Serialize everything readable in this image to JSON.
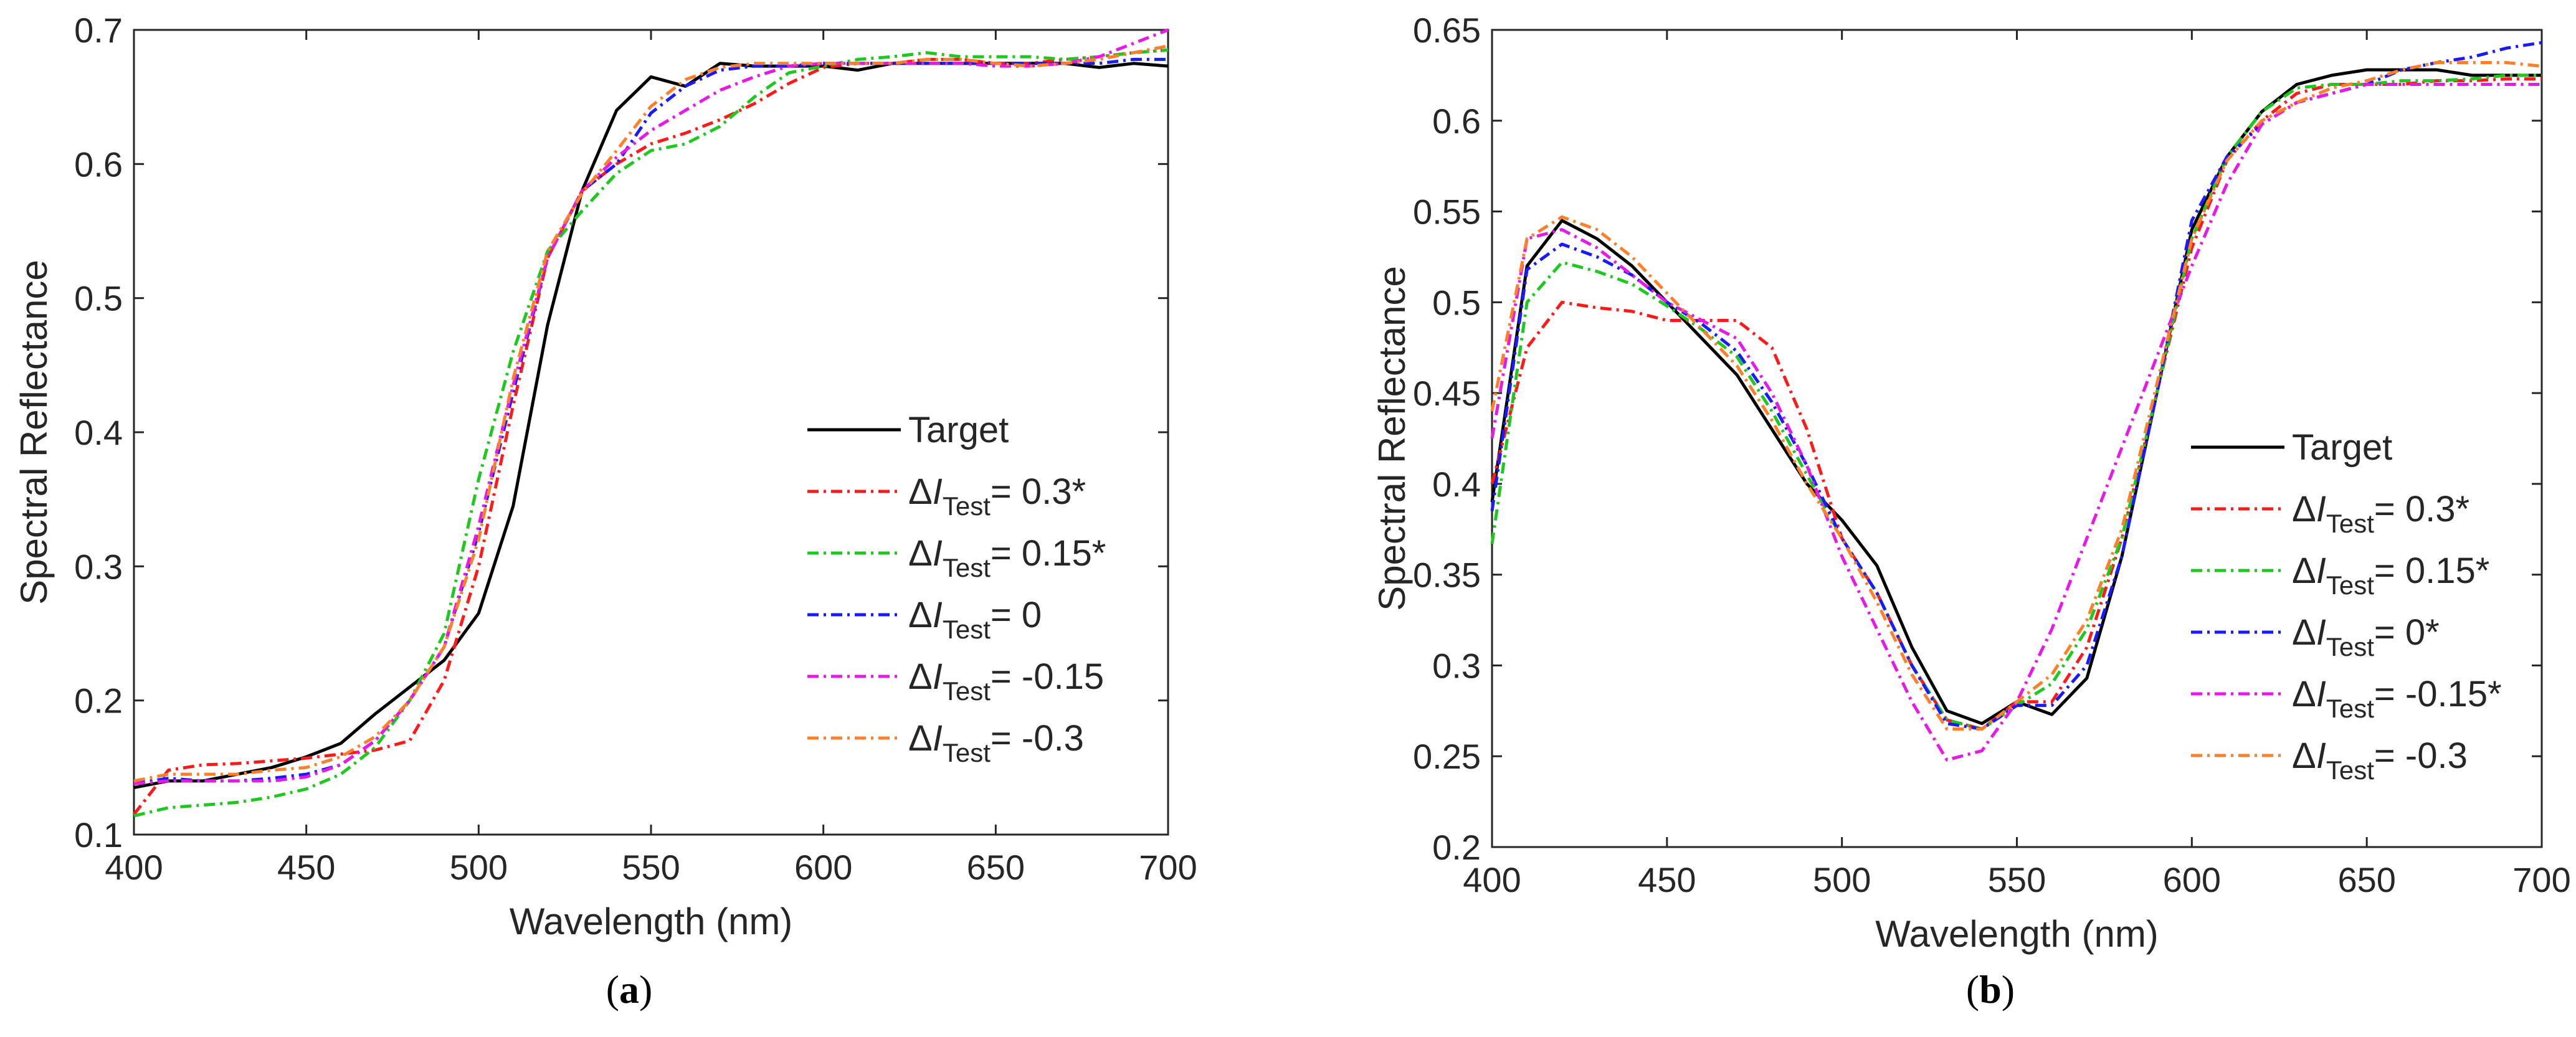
{
  "chart_data": [
    {
      "type": "line",
      "caption": "(a)",
      "caption_parts": [
        "(",
        "a",
        ")"
      ],
      "xlabel": "Wavelength (nm)",
      "ylabel": "Spectral Reflectance",
      "xlim": [
        400,
        700
      ],
      "ylim": [
        0.1,
        0.7
      ],
      "xticks": [
        400,
        450,
        500,
        550,
        600,
        650,
        700
      ],
      "yticks": [
        0.1,
        0.2,
        0.3,
        0.4,
        0.5,
        0.6,
        0.7
      ],
      "ytick_labels": [
        "0.1",
        "0.2",
        "0.3",
        "0.4",
        "0.5",
        "0.6",
        "0.7"
      ],
      "grid": false,
      "legend_position": "center-right",
      "x": [
        400,
        410,
        420,
        430,
        440,
        450,
        460,
        470,
        480,
        490,
        500,
        510,
        520,
        530,
        540,
        550,
        560,
        570,
        580,
        590,
        600,
        610,
        620,
        630,
        640,
        650,
        660,
        670,
        680,
        690,
        700
      ],
      "series": [
        {
          "name": "Target",
          "legend_prefix": "",
          "legend_var": "",
          "legend_sub": "",
          "legend_value": "Target",
          "color": "#000000",
          "dash": "",
          "values": [
            0.135,
            0.14,
            0.14,
            0.145,
            0.15,
            0.158,
            0.168,
            0.19,
            0.21,
            0.23,
            0.265,
            0.345,
            0.48,
            0.58,
            0.64,
            0.665,
            0.658,
            0.675,
            0.673,
            0.673,
            0.673,
            0.67,
            0.675,
            0.675,
            0.675,
            0.675,
            0.675,
            0.675,
            0.672,
            0.675,
            0.673
          ]
        },
        {
          "name": "ΔI_Test = 0.3*",
          "legend_prefix": "Δ",
          "legend_var": "I",
          "legend_sub": "Test",
          "legend_value": "= 0.3*",
          "color": "#ff1a1a",
          "dash": "18 8 4 8",
          "values": [
            0.115,
            0.148,
            0.152,
            0.153,
            0.155,
            0.157,
            0.16,
            0.163,
            0.17,
            0.215,
            0.3,
            0.42,
            0.53,
            0.58,
            0.6,
            0.615,
            0.623,
            0.633,
            0.645,
            0.66,
            0.672,
            0.675,
            0.675,
            0.678,
            0.678,
            0.675,
            0.675,
            0.678,
            0.68,
            0.683,
            0.685
          ]
        },
        {
          "name": "ΔI_Test = 0.15*",
          "legend_prefix": "Δ",
          "legend_var": "I",
          "legend_sub": "Test",
          "legend_value": "= 0.15*",
          "color": "#1ec81e",
          "dash": "18 8 4 8",
          "values": [
            0.114,
            0.12,
            0.122,
            0.124,
            0.128,
            0.134,
            0.145,
            0.165,
            0.2,
            0.25,
            0.365,
            0.46,
            0.535,
            0.565,
            0.593,
            0.61,
            0.615,
            0.628,
            0.65,
            0.668,
            0.673,
            0.678,
            0.68,
            0.683,
            0.68,
            0.68,
            0.68,
            0.678,
            0.68,
            0.683,
            0.685
          ]
        },
        {
          "name": "ΔI_Test = 0",
          "legend_prefix": "Δ",
          "legend_var": "I",
          "legend_sub": "Test",
          "legend_value": "= 0",
          "color": "#1a1aff",
          "dash": "18 8 4 8",
          "values": [
            0.138,
            0.142,
            0.14,
            0.14,
            0.142,
            0.145,
            0.152,
            0.17,
            0.2,
            0.24,
            0.325,
            0.43,
            0.53,
            0.58,
            0.6,
            0.638,
            0.658,
            0.67,
            0.673,
            0.673,
            0.675,
            0.675,
            0.675,
            0.675,
            0.675,
            0.675,
            0.675,
            0.675,
            0.675,
            0.678,
            0.678
          ]
        },
        {
          "name": "ΔI_Test = -0.15",
          "legend_prefix": "Δ",
          "legend_var": "I",
          "legend_sub": "Test",
          "legend_value": "= -0.15",
          "color": "#e619e6",
          "dash": "18 8 4 8",
          "values": [
            0.138,
            0.14,
            0.14,
            0.14,
            0.14,
            0.143,
            0.152,
            0.17,
            0.2,
            0.24,
            0.33,
            0.435,
            0.53,
            0.58,
            0.605,
            0.625,
            0.64,
            0.655,
            0.665,
            0.673,
            0.675,
            0.675,
            0.675,
            0.675,
            0.675,
            0.673,
            0.673,
            0.675,
            0.68,
            0.69,
            0.7
          ]
        },
        {
          "name": "ΔI_Test = -0.3",
          "legend_prefix": "Δ",
          "legend_var": "I",
          "legend_sub": "Test",
          "legend_value": "= -0.3",
          "color": "#ff7f2a",
          "dash": "18 8 4 8",
          "values": [
            0.14,
            0.145,
            0.145,
            0.145,
            0.148,
            0.15,
            0.158,
            0.173,
            0.2,
            0.24,
            0.32,
            0.44,
            0.535,
            0.578,
            0.61,
            0.643,
            0.663,
            0.672,
            0.675,
            0.675,
            0.675,
            0.675,
            0.675,
            0.678,
            0.678,
            0.675,
            0.673,
            0.675,
            0.678,
            0.683,
            0.688
          ]
        }
      ]
    },
    {
      "type": "line",
      "caption": "(b)",
      "caption_parts": [
        "(",
        "b",
        ")"
      ],
      "xlabel": "Wavelength (nm)",
      "ylabel": "Spectral Reflectance",
      "xlim": [
        400,
        700
      ],
      "ylim": [
        0.2,
        0.65
      ],
      "xticks": [
        400,
        450,
        500,
        550,
        600,
        650,
        700
      ],
      "yticks": [
        0.2,
        0.25,
        0.3,
        0.35,
        0.4,
        0.45,
        0.5,
        0.55,
        0.6,
        0.65
      ],
      "ytick_labels": [
        "0.2",
        "0.25",
        "0.3",
        "0.35",
        "0.4",
        "0.45",
        "0.5",
        "0.55",
        "0.6",
        "0.65"
      ],
      "grid": false,
      "legend_position": "center-right",
      "x": [
        400,
        410,
        420,
        430,
        440,
        450,
        460,
        470,
        480,
        490,
        500,
        510,
        520,
        530,
        540,
        550,
        560,
        570,
        580,
        590,
        600,
        610,
        620,
        630,
        640,
        650,
        660,
        670,
        680,
        690,
        700
      ],
      "series": [
        {
          "name": "Target",
          "legend_prefix": "",
          "legend_var": "",
          "legend_sub": "",
          "legend_value": "Target",
          "color": "#000000",
          "dash": "",
          "values": [
            0.39,
            0.52,
            0.545,
            0.535,
            0.52,
            0.5,
            0.48,
            0.46,
            0.43,
            0.4,
            0.38,
            0.355,
            0.31,
            0.275,
            0.268,
            0.28,
            0.273,
            0.293,
            0.36,
            0.45,
            0.54,
            0.58,
            0.605,
            0.62,
            0.625,
            0.628,
            0.628,
            0.628,
            0.625,
            0.625,
            0.625
          ]
        },
        {
          "name": "ΔI_Test = 0.3*",
          "legend_prefix": "Δ",
          "legend_var": "I",
          "legend_sub": "Test",
          "legend_value": "= 0.3*",
          "color": "#ff1a1a",
          "dash": "18 8 4 8",
          "values": [
            0.4,
            0.475,
            0.5,
            0.497,
            0.495,
            0.49,
            0.49,
            0.49,
            0.475,
            0.43,
            0.37,
            0.34,
            0.3,
            0.27,
            0.265,
            0.28,
            0.28,
            0.31,
            0.37,
            0.45,
            0.53,
            0.578,
            0.6,
            0.615,
            0.62,
            0.62,
            0.62,
            0.622,
            0.622,
            0.623,
            0.623
          ]
        },
        {
          "name": "ΔI_Test = 0.15*",
          "legend_prefix": "Δ",
          "legend_var": "I",
          "legend_sub": "Test",
          "legend_value": "= 0.15*",
          "color": "#1ec81e",
          "dash": "18 8 4 8",
          "values": [
            0.367,
            0.5,
            0.522,
            0.517,
            0.51,
            0.498,
            0.485,
            0.47,
            0.44,
            0.405,
            0.37,
            0.34,
            0.3,
            0.27,
            0.265,
            0.278,
            0.29,
            0.32,
            0.37,
            0.45,
            0.535,
            0.58,
            0.605,
            0.618,
            0.62,
            0.62,
            0.622,
            0.622,
            0.623,
            0.625,
            0.625
          ]
        },
        {
          "name": "ΔI_Test = 0*",
          "legend_prefix": "Δ",
          "legend_var": "I",
          "legend_sub": "Test",
          "legend_value": "= 0*",
          "color": "#1a1aff",
          "dash": "18 8 4 8",
          "values": [
            0.385,
            0.518,
            0.532,
            0.525,
            0.515,
            0.5,
            0.488,
            0.473,
            0.445,
            0.41,
            0.37,
            0.34,
            0.3,
            0.268,
            0.265,
            0.278,
            0.278,
            0.3,
            0.36,
            0.45,
            0.545,
            0.58,
            0.598,
            0.61,
            0.615,
            0.62,
            0.628,
            0.632,
            0.635,
            0.64,
            0.643
          ]
        },
        {
          "name": "ΔI_Test = -0.15*",
          "legend_prefix": "Δ",
          "legend_var": "I",
          "legend_sub": "Test",
          "legend_value": "= -0.15*",
          "color": "#e619e6",
          "dash": "18 8 4 8",
          "values": [
            0.425,
            0.535,
            0.54,
            0.53,
            0.515,
            0.5,
            0.49,
            0.48,
            0.45,
            0.41,
            0.36,
            0.32,
            0.28,
            0.248,
            0.253,
            0.28,
            0.32,
            0.37,
            0.42,
            0.47,
            0.52,
            0.565,
            0.598,
            0.61,
            0.615,
            0.62,
            0.62,
            0.62,
            0.62,
            0.62,
            0.62
          ]
        },
        {
          "name": "ΔI_Test = -0.3",
          "legend_prefix": "Δ",
          "legend_var": "I",
          "legend_sub": "Test",
          "legend_value": "= -0.3",
          "color": "#ff7f2a",
          "dash": "18 8 4 8",
          "values": [
            0.44,
            0.535,
            0.547,
            0.54,
            0.525,
            0.505,
            0.485,
            0.465,
            0.435,
            0.4,
            0.37,
            0.335,
            0.295,
            0.265,
            0.265,
            0.28,
            0.295,
            0.325,
            0.375,
            0.455,
            0.535,
            0.578,
            0.6,
            0.61,
            0.618,
            0.622,
            0.628,
            0.632,
            0.632,
            0.632,
            0.63
          ]
        }
      ]
    }
  ]
}
